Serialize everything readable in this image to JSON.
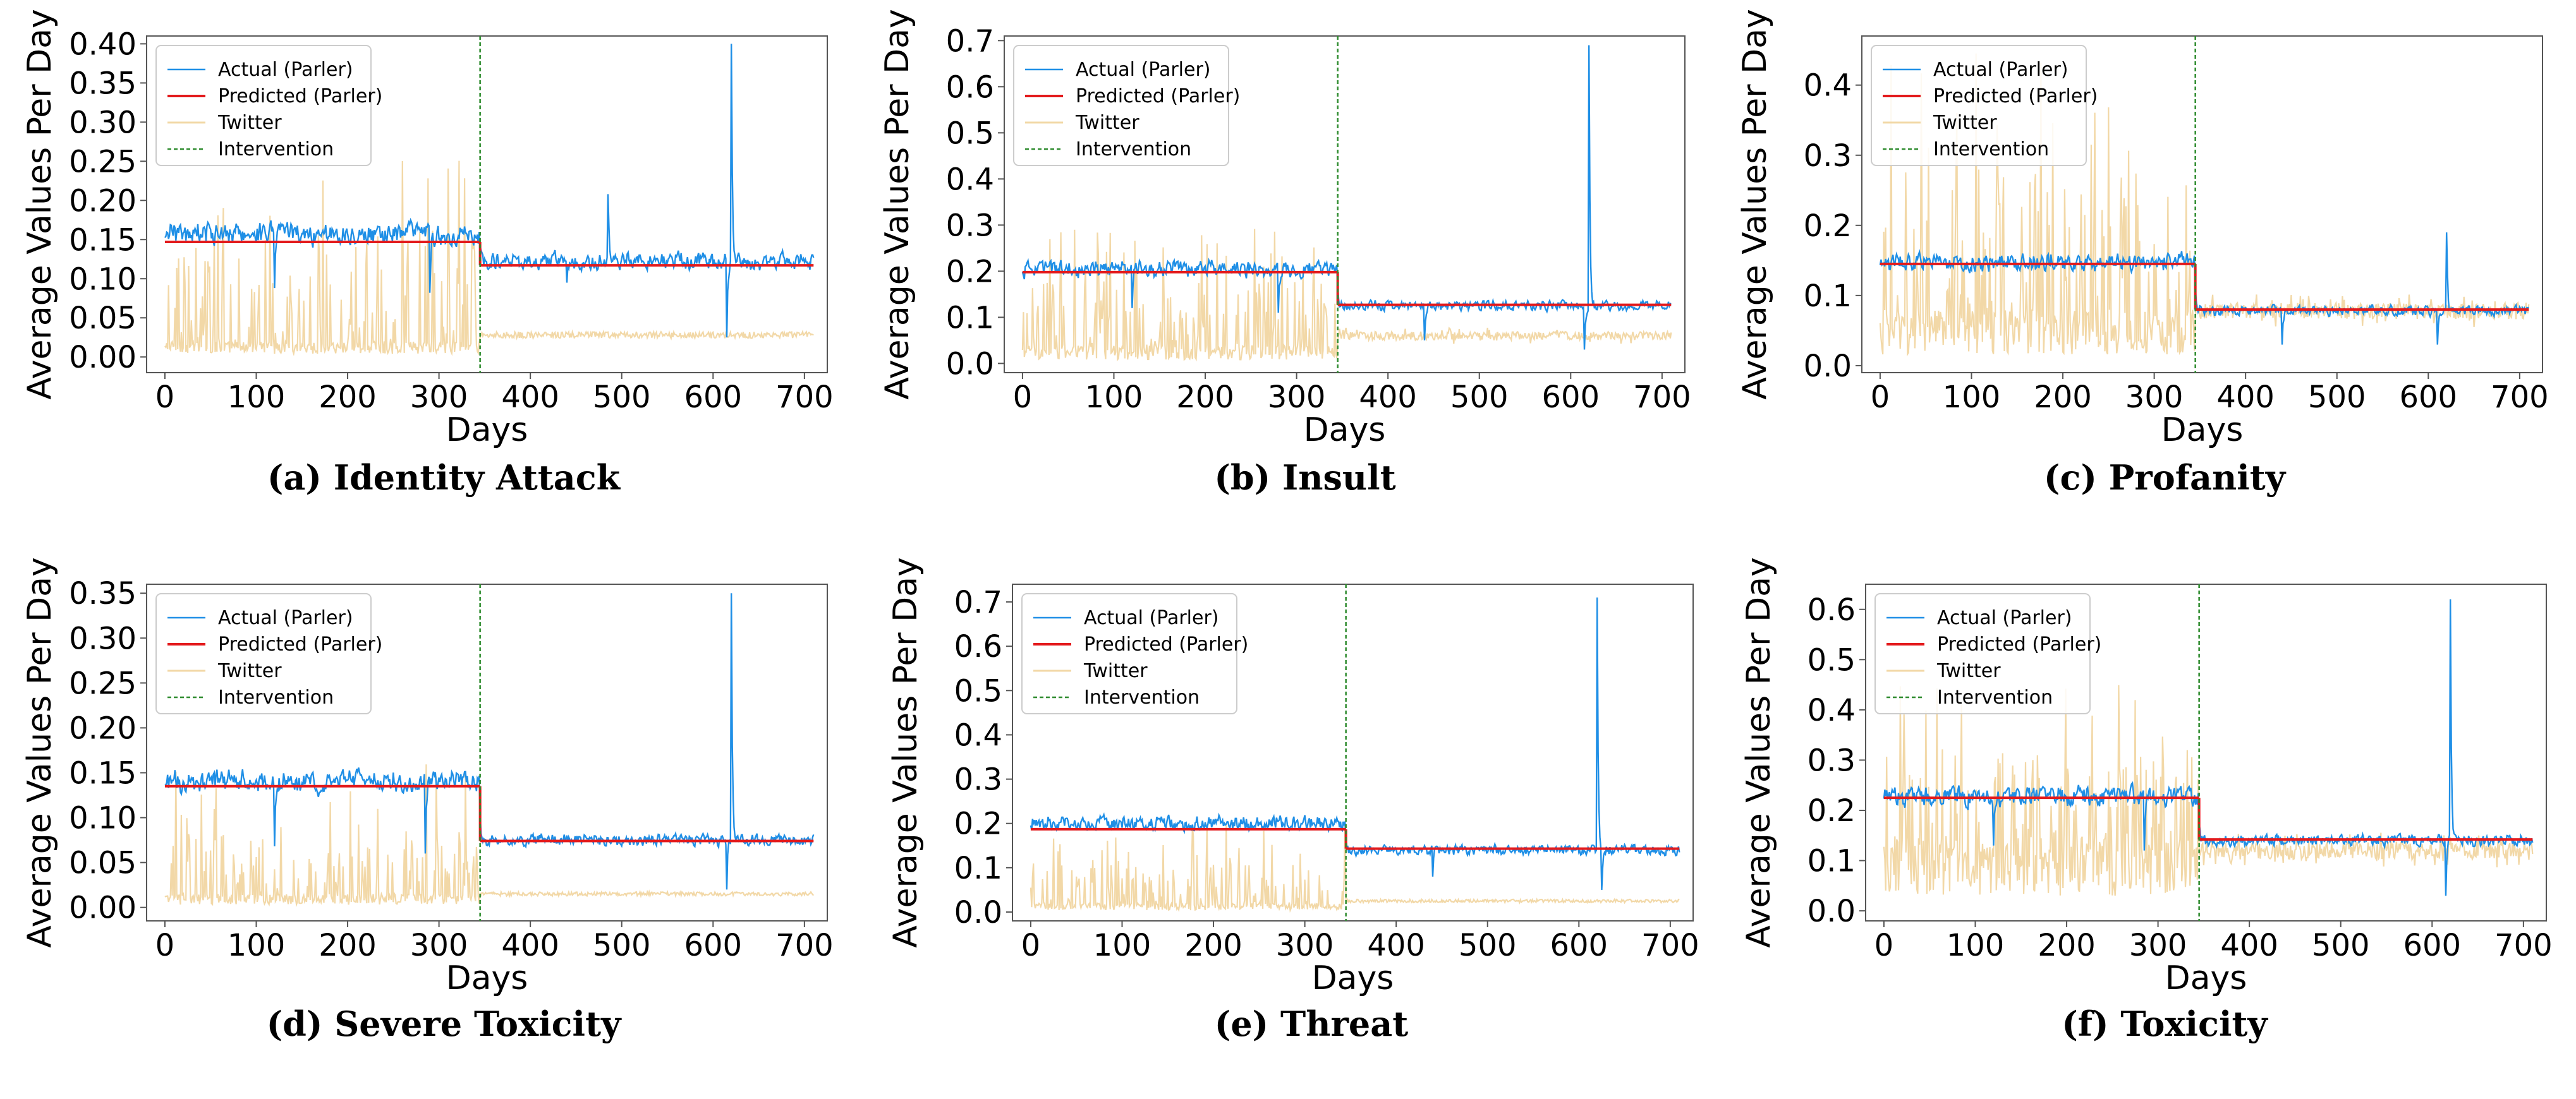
{
  "chart_data": [
    {
      "type": "line",
      "caption": "(a) Identity Attack",
      "xlabel": "Days",
      "ylabel": "Average Values Per Day",
      "xlim": [
        -20,
        725
      ],
      "ylim": [
        -0.02,
        0.41
      ],
      "xticks": [
        "0",
        "100",
        "200",
        "300",
        "400",
        "500",
        "600",
        "700"
      ],
      "yticks": [
        "0.00",
        "0.05",
        "0.10",
        "0.15",
        "0.20",
        "0.25",
        "0.30",
        "0.35",
        "0.40"
      ],
      "legend_position": "top-left",
      "legend": [
        "Actual (Parler)",
        "Predicted (Parler)",
        "Twitter",
        "Intervention"
      ],
      "intervention_day": 345,
      "predicted": [
        {
          "x0": 0,
          "x1": 345,
          "y": 0.147
        },
        {
          "x0": 345,
          "x1": 710,
          "y": 0.117
        }
      ],
      "actual_level": {
        "pre": 0.158,
        "post": 0.122
      },
      "actual_spikes": [
        {
          "x": 120,
          "y": 0.088
        },
        {
          "x": 290,
          "y": 0.082
        },
        {
          "x": 440,
          "y": 0.095
        },
        {
          "x": 485,
          "y": 0.208
        },
        {
          "x": 620,
          "y": 0.4
        },
        {
          "x": 615,
          "y": 0.025
        }
      ],
      "twitter_level": {
        "pre": 0.02,
        "post": 0.028
      },
      "twitter_peak_max": 0.27
    },
    {
      "type": "line",
      "caption": "(b) Insult",
      "xlabel": "Days",
      "ylabel": "Average Values Per Day",
      "xlim": [
        -20,
        725
      ],
      "ylim": [
        -0.02,
        0.71
      ],
      "xticks": [
        "0",
        "100",
        "200",
        "300",
        "400",
        "500",
        "600",
        "700"
      ],
      "yticks": [
        "0.0",
        "0.1",
        "0.2",
        "0.3",
        "0.4",
        "0.5",
        "0.6",
        "0.7"
      ],
      "legend_position": "top-left",
      "legend": [
        "Actual (Parler)",
        "Predicted (Parler)",
        "Twitter",
        "Intervention"
      ],
      "intervention_day": 345,
      "predicted": [
        {
          "x0": 0,
          "x1": 345,
          "y": 0.198
        },
        {
          "x0": 345,
          "x1": 710,
          "y": 0.127
        }
      ],
      "actual_level": {
        "pre": 0.205,
        "post": 0.125
      },
      "actual_spikes": [
        {
          "x": 120,
          "y": 0.12
        },
        {
          "x": 280,
          "y": 0.11
        },
        {
          "x": 440,
          "y": 0.05
        },
        {
          "x": 620,
          "y": 0.69
        },
        {
          "x": 615,
          "y": 0.03
        }
      ],
      "twitter_level": {
        "pre": 0.04,
        "post": 0.06
      },
      "twitter_peak_max": 0.3
    },
    {
      "type": "line",
      "caption": "(c) Profanity",
      "xlabel": "Days",
      "ylabel": "Average Values Per Day",
      "xlim": [
        -20,
        725
      ],
      "ylim": [
        -0.01,
        0.47
      ],
      "xticks": [
        "0",
        "100",
        "200",
        "300",
        "400",
        "500",
        "600",
        "700"
      ],
      "yticks": [
        "0.0",
        "0.1",
        "0.2",
        "0.3",
        "0.4"
      ],
      "legend_position": "top-left",
      "legend": [
        "Actual (Parler)",
        "Predicted (Parler)",
        "Twitter",
        "Intervention"
      ],
      "intervention_day": 345,
      "predicted": [
        {
          "x0": 0,
          "x1": 345,
          "y": 0.145
        },
        {
          "x0": 345,
          "x1": 710,
          "y": 0.08
        }
      ],
      "actual_level": {
        "pre": 0.148,
        "post": 0.078
      },
      "actual_spikes": [
        {
          "x": 620,
          "y": 0.19
        },
        {
          "x": 440,
          "y": 0.03
        },
        {
          "x": 610,
          "y": 0.03
        }
      ],
      "twitter_level": {
        "pre": 0.08,
        "post": 0.078
      },
      "twitter_peak_max": 0.45
    },
    {
      "type": "line",
      "caption": "(d) Severe Toxicity",
      "xlabel": "Days",
      "ylabel": "Average Values Per Day",
      "xlim": [
        -20,
        725
      ],
      "ylim": [
        -0.015,
        0.36
      ],
      "xticks": [
        "0",
        "100",
        "200",
        "300",
        "400",
        "500",
        "600",
        "700"
      ],
      "yticks": [
        "0.00",
        "0.05",
        "0.10",
        "0.15",
        "0.20",
        "0.25",
        "0.30",
        "0.35"
      ],
      "legend_position": "top-left",
      "legend": [
        "Actual (Parler)",
        "Predicted (Parler)",
        "Twitter",
        "Intervention"
      ],
      "intervention_day": 345,
      "predicted": [
        {
          "x0": 0,
          "x1": 345,
          "y": 0.135
        },
        {
          "x0": 345,
          "x1": 710,
          "y": 0.074
        }
      ],
      "actual_level": {
        "pre": 0.14,
        "post": 0.075
      },
      "actual_spikes": [
        {
          "x": 120,
          "y": 0.068
        },
        {
          "x": 285,
          "y": 0.06
        },
        {
          "x": 620,
          "y": 0.35
        },
        {
          "x": 615,
          "y": 0.02
        }
      ],
      "twitter_level": {
        "pre": 0.015,
        "post": 0.015
      },
      "twitter_peak_max": 0.16
    },
    {
      "type": "line",
      "caption": "(e) Threat",
      "xlabel": "Days",
      "ylabel": "Average Values Per Day",
      "xlim": [
        -20,
        725
      ],
      "ylim": [
        -0.02,
        0.74
      ],
      "xticks": [
        "0",
        "100",
        "200",
        "300",
        "400",
        "500",
        "600",
        "700"
      ],
      "yticks": [
        "0.0",
        "0.1",
        "0.2",
        "0.3",
        "0.4",
        "0.5",
        "0.6",
        "0.7"
      ],
      "legend_position": "top-left",
      "legend": [
        "Actual (Parler)",
        "Predicted (Parler)",
        "Twitter",
        "Intervention"
      ],
      "intervention_day": 345,
      "predicted": [
        {
          "x0": 0,
          "x1": 345,
          "y": 0.187
        },
        {
          "x0": 345,
          "x1": 710,
          "y": 0.143
        }
      ],
      "actual_level": {
        "pre": 0.2,
        "post": 0.14
      },
      "actual_spikes": [
        {
          "x": 620,
          "y": 0.71
        },
        {
          "x": 440,
          "y": 0.08
        },
        {
          "x": 625,
          "y": 0.05
        }
      ],
      "twitter_level": {
        "pre": 0.02,
        "post": 0.025
      },
      "twitter_peak_max": 0.2
    },
    {
      "type": "line",
      "caption": "(f) Toxicity",
      "xlabel": "Days",
      "ylabel": "Average Values Per Day",
      "xlim": [
        -20,
        725
      ],
      "ylim": [
        -0.02,
        0.65
      ],
      "xticks": [
        "0",
        "100",
        "200",
        "300",
        "400",
        "500",
        "600",
        "700"
      ],
      "yticks": [
        "0.0",
        "0.1",
        "0.2",
        "0.3",
        "0.4",
        "0.5",
        "0.6"
      ],
      "legend_position": "top-left",
      "legend": [
        "Actual (Parler)",
        "Predicted (Parler)",
        "Twitter",
        "Intervention"
      ],
      "intervention_day": 345,
      "predicted": [
        {
          "x0": 0,
          "x1": 345,
          "y": 0.225
        },
        {
          "x0": 345,
          "x1": 710,
          "y": 0.142
        }
      ],
      "actual_level": {
        "pre": 0.228,
        "post": 0.14
      },
      "actual_spikes": [
        {
          "x": 120,
          "y": 0.13
        },
        {
          "x": 285,
          "y": 0.12
        },
        {
          "x": 620,
          "y": 0.62
        },
        {
          "x": 615,
          "y": 0.03
        }
      ],
      "twitter_level": {
        "pre": 0.15,
        "post": 0.12
      },
      "twitter_peak_max": 0.45
    }
  ],
  "colors": {
    "actual": "#1f8fe6",
    "predicted": "#e31a1c",
    "twitter": "#f2d8a7",
    "intervention": "#2e8b2e",
    "frame": "#555555",
    "text": "#000000"
  }
}
